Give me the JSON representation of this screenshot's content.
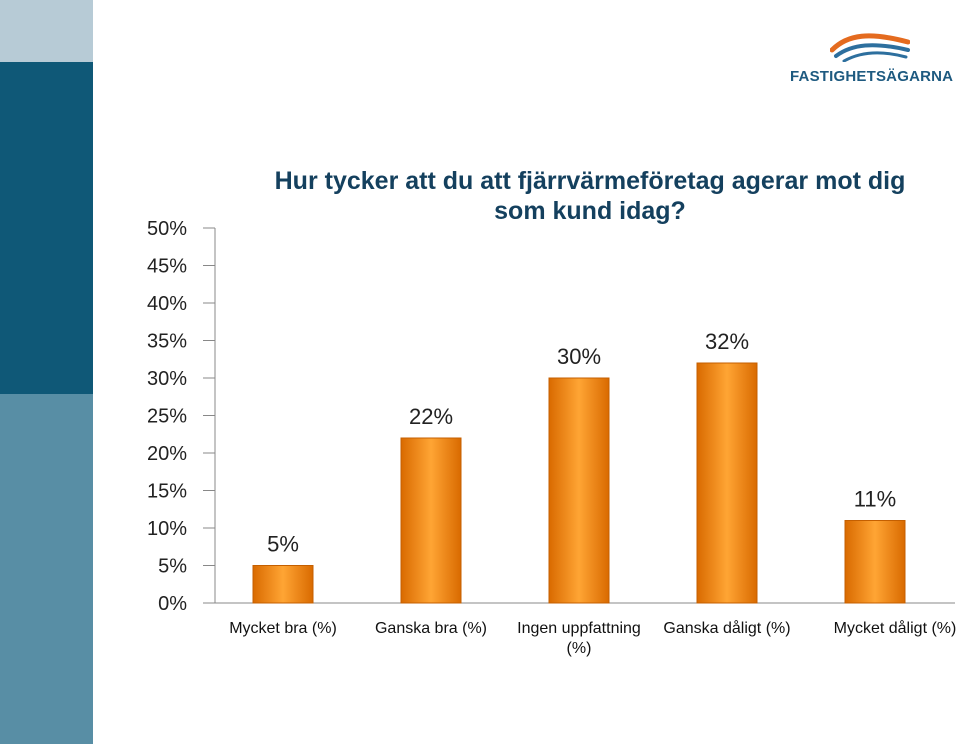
{
  "logo": {
    "text": "FASTIGHETSÄGARNA"
  },
  "chart_data": {
    "type": "bar",
    "title": "Hur tycker att du att fjärrvärmeföretag agerar mot dig som kund idag?",
    "categories": [
      "Mycket bra (%)",
      "Ganska bra (%)",
      "Ingen uppfattning (%)",
      "Ganska dåligt (%)",
      "Mycket dåligt (%)"
    ],
    "values": [
      5,
      22,
      30,
      32,
      11
    ],
    "data_labels": [
      "5%",
      "22%",
      "30%",
      "32%",
      "11%"
    ],
    "ylim": [
      0,
      50
    ],
    "ytick_step": 5,
    "ytick_labels": [
      "0%",
      "5%",
      "10%",
      "15%",
      "20%",
      "25%",
      "30%",
      "35%",
      "40%",
      "45%",
      "50%"
    ],
    "xlabel": "",
    "ylabel": "",
    "grid": false,
    "legend": "none",
    "bar_color": "#f08a0e",
    "colors": {
      "accent_band": "#0f5877",
      "title": "#14405e"
    }
  }
}
